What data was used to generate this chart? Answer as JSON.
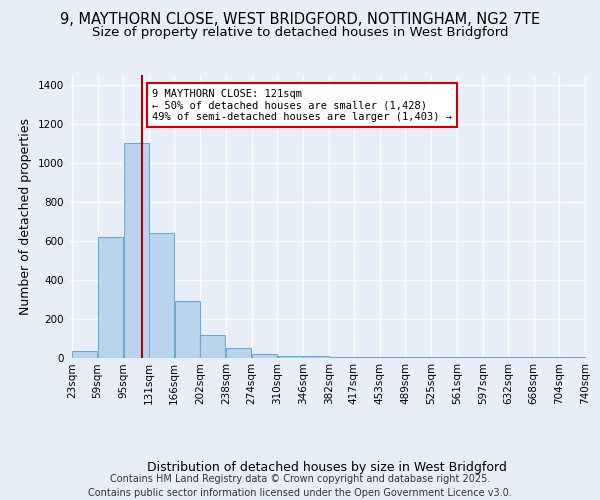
{
  "title_line1": "9, MAYTHORN CLOSE, WEST BRIDGFORD, NOTTINGHAM, NG2 7TE",
  "title_line2": "Size of property relative to detached houses in West Bridgford",
  "xlabel": "Distribution of detached houses by size in West Bridgford",
  "ylabel": "Number of detached properties",
  "bin_edges": [
    23,
    59,
    95,
    131,
    166,
    202,
    238,
    274,
    310,
    346,
    382,
    417,
    453,
    489,
    525,
    561,
    597,
    632,
    668,
    704,
    740
  ],
  "bin_counts": [
    35,
    620,
    1100,
    640,
    290,
    115,
    50,
    20,
    10,
    8,
    5,
    4,
    3,
    3,
    2,
    2,
    2,
    1,
    1,
    1
  ],
  "bar_color": "#bad4ee",
  "bar_edge_color": "#6aaad4",
  "vline_x": 121,
  "vline_color": "#aa0000",
  "annotation_text": "9 MAYTHORN CLOSE: 121sqm\n← 50% of detached houses are smaller (1,428)\n49% of semi-detached houses are larger (1,403) →",
  "annotation_box_color": "white",
  "annotation_box_edge": "#cc0000",
  "ylim": [
    0,
    1450
  ],
  "yticks": [
    0,
    200,
    400,
    600,
    800,
    1000,
    1200,
    1400
  ],
  "bg_color": "#e8eef8",
  "plot_bg_color": "#e8eef8",
  "grid_color": "#ffffff",
  "tick_labels": [
    "23sqm",
    "59sqm",
    "95sqm",
    "131sqm",
    "166sqm",
    "202sqm",
    "238sqm",
    "274sqm",
    "310sqm",
    "346sqm",
    "382sqm",
    "417sqm",
    "453sqm",
    "489sqm",
    "525sqm",
    "561sqm",
    "597sqm",
    "632sqm",
    "668sqm",
    "704sqm",
    "740sqm"
  ],
  "footer_text": "Contains HM Land Registry data © Crown copyright and database right 2025.\nContains public sector information licensed under the Open Government Licence v3.0.",
  "title_fontsize": 10.5,
  "subtitle_fontsize": 9.5,
  "axis_label_fontsize": 9,
  "tick_fontsize": 7.5,
  "annotation_fontsize": 7.5,
  "footer_fontsize": 7
}
